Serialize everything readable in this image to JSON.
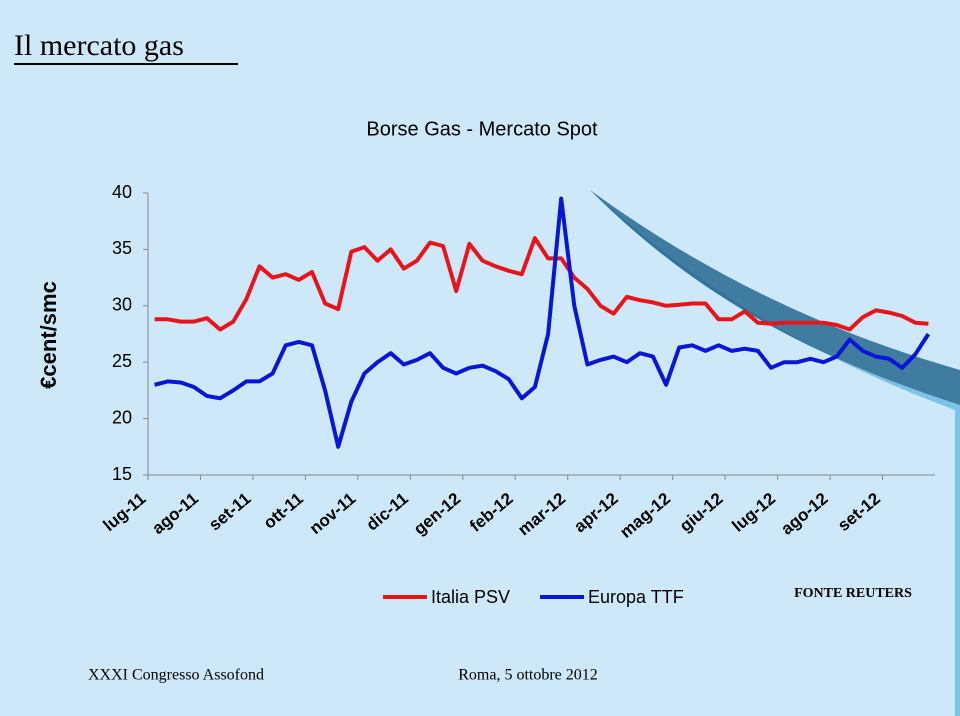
{
  "slide_title": "Il mercato gas",
  "source": "FONTE REUTERS",
  "footer": {
    "left": "XXXI Congresso Assofond",
    "right": "Roma, 5 ottobre 2012"
  },
  "chart_data": {
    "type": "line",
    "title": "Borse Gas - Mercato Spot",
    "y_label": "€cent/smc",
    "categories": [
      "lug-11",
      null,
      null,
      null,
      "ago-11",
      null,
      null,
      null,
      "set-11",
      null,
      null,
      null,
      "ott-11",
      null,
      null,
      null,
      "nov-11",
      null,
      null,
      null,
      "dic-11",
      null,
      null,
      null,
      "gen-12",
      null,
      null,
      null,
      "feb-12",
      null,
      null,
      null,
      "mar-12",
      null,
      null,
      null,
      "apr-12",
      null,
      null,
      null,
      "mag-12",
      null,
      null,
      null,
      "giu-12",
      null,
      null,
      null,
      "lug-12",
      null,
      null,
      null,
      "ago-12",
      null,
      null,
      null,
      "set-12",
      null,
      null,
      null
    ],
    "series": [
      {
        "name": "Italia PSV",
        "color": "#e8141b",
        "values": [
          28.8,
          28.8,
          28.6,
          28.6,
          28.9,
          27.9,
          28.6,
          30.6,
          33.5,
          32.5,
          32.8,
          32.3,
          33.0,
          30.2,
          29.7,
          34.8,
          35.2,
          34.0,
          35.0,
          33.3,
          34.0,
          35.6,
          35.3,
          31.3,
          35.5,
          34.0,
          33.5,
          33.1,
          32.8,
          36.0,
          34.2,
          34.2,
          32.5,
          31.5,
          30.0,
          29.3,
          30.8,
          30.5,
          30.3,
          30.0,
          30.1,
          30.2,
          30.2,
          28.8,
          28.8,
          29.5,
          28.5,
          28.4,
          28.5,
          28.5,
          28.5,
          28.5,
          28.3,
          27.9,
          29.0,
          29.6,
          29.4,
          29.1,
          28.5,
          28.4
        ]
      },
      {
        "name": "Europa TTF",
        "color": "#0a16d6",
        "values": [
          23.0,
          23.3,
          23.2,
          22.8,
          22.0,
          21.8,
          22.5,
          23.3,
          23.3,
          24.0,
          26.5,
          26.8,
          26.5,
          22.5,
          17.5,
          21.5,
          24.0,
          25.0,
          25.8,
          24.8,
          25.2,
          25.8,
          24.5,
          24.0,
          24.5,
          24.7,
          24.2,
          23.5,
          21.8,
          22.8,
          27.5,
          39.5,
          30.0,
          24.8,
          25.2,
          25.5,
          25.0,
          25.8,
          25.5,
          23.0,
          26.3,
          26.5,
          26.0,
          26.5,
          26.0,
          26.2,
          26.0,
          24.5,
          25.0,
          25.0,
          25.3,
          25.0,
          25.5,
          27.0,
          26.0,
          25.5,
          25.3,
          24.5,
          25.7,
          27.5
        ]
      }
    ],
    "ylim": [
      15,
      40
    ],
    "yticks": [
      15,
      20,
      25,
      30,
      35,
      40
    ]
  }
}
